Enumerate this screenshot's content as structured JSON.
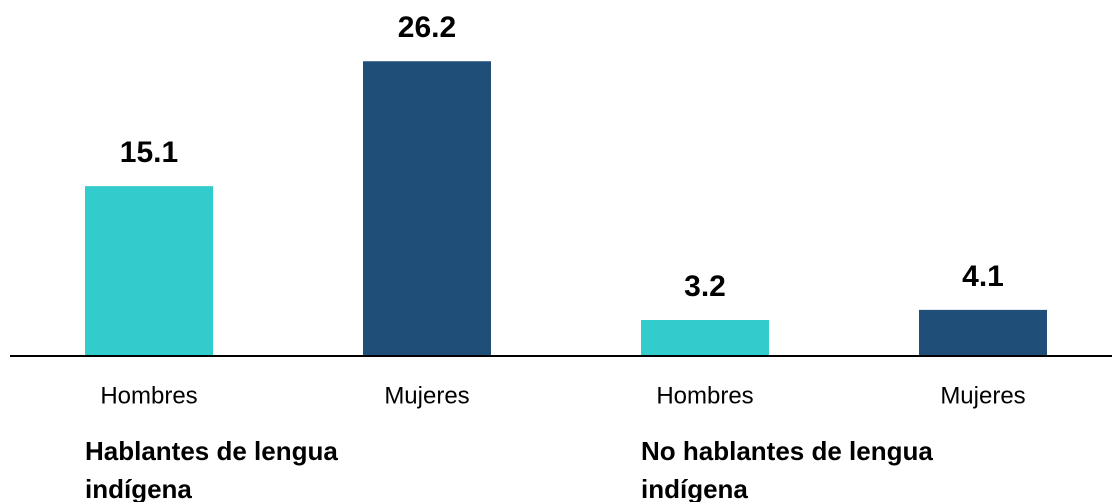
{
  "chart_data": {
    "type": "bar",
    "categories": [
      "Hombres",
      "Mujeres",
      "Hombres",
      "Mujeres"
    ],
    "values": [
      15.1,
      26.2,
      3.2,
      4.1
    ],
    "colors": [
      "#33cccc",
      "#1f4e79",
      "#33cccc",
      "#1f4e79"
    ],
    "groups": [
      {
        "label": "Hablantes de lengua indígena",
        "size": 2
      },
      {
        "label": "No hablantes de lengua indígena",
        "size": 2
      }
    ],
    "ylim": [
      0,
      28
    ]
  }
}
